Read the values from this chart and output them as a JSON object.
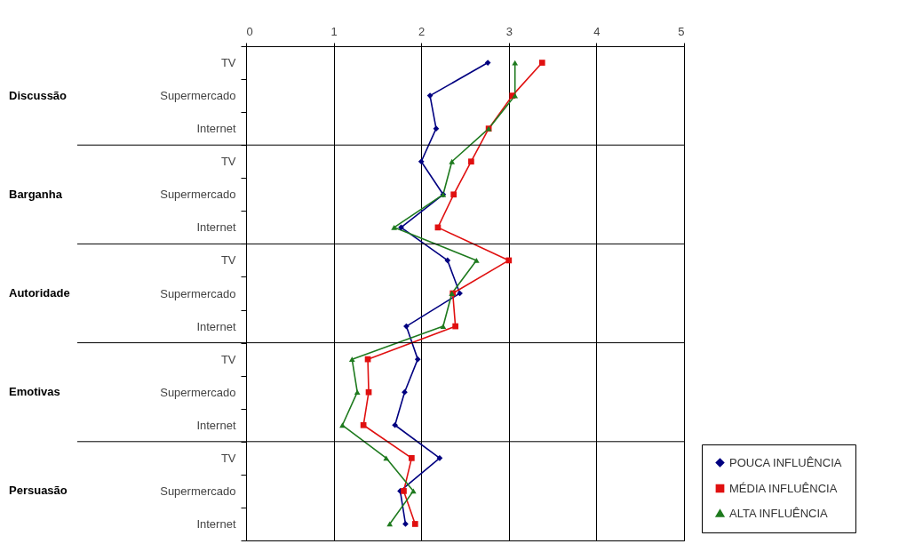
{
  "chart_data": {
    "type": "line",
    "orientation": "horizontal",
    "categories": [
      "TV",
      "Supermercado",
      "Internet",
      "TV",
      "Supermercado",
      "Internet",
      "TV",
      "Supermercado",
      "Internet",
      "TV",
      "Supermercado",
      "Internet",
      "TV",
      "Supermercado",
      "Internet"
    ],
    "annotations": [
      "Discussão",
      "Barganha",
      "Autoridade",
      "Emotivas",
      "Persuasão"
    ],
    "xlim": [
      0,
      5
    ],
    "xticks": [
      0,
      1,
      2,
      3,
      4,
      5
    ],
    "grid": "x",
    "legend": "bottom right",
    "series": [
      {
        "name": "POUCA INFLUÊNCIA",
        "color": "#000080",
        "marker": "diamond",
        "values": [
          2.76,
          2.1,
          2.17,
          2.0,
          2.25,
          1.77,
          2.3,
          2.44,
          1.83,
          1.96,
          1.81,
          1.7,
          2.21,
          1.76,
          1.82
        ]
      },
      {
        "name": "MÉDIA INFLUÊNCIA",
        "color": "#e01010",
        "marker": "square",
        "values": [
          3.38,
          3.04,
          2.77,
          2.57,
          2.37,
          2.19,
          3.0,
          2.36,
          2.39,
          1.39,
          1.4,
          1.34,
          1.89,
          1.8,
          1.93
        ]
      },
      {
        "name": "ALTA INFLUÊNCIA",
        "color": "#1e7a1e",
        "marker": "triangle",
        "values": [
          3.07,
          3.07,
          2.77,
          2.35,
          2.25,
          1.69,
          2.63,
          2.35,
          2.25,
          1.21,
          1.27,
          1.1,
          1.6,
          1.91,
          1.64
        ]
      }
    ]
  }
}
